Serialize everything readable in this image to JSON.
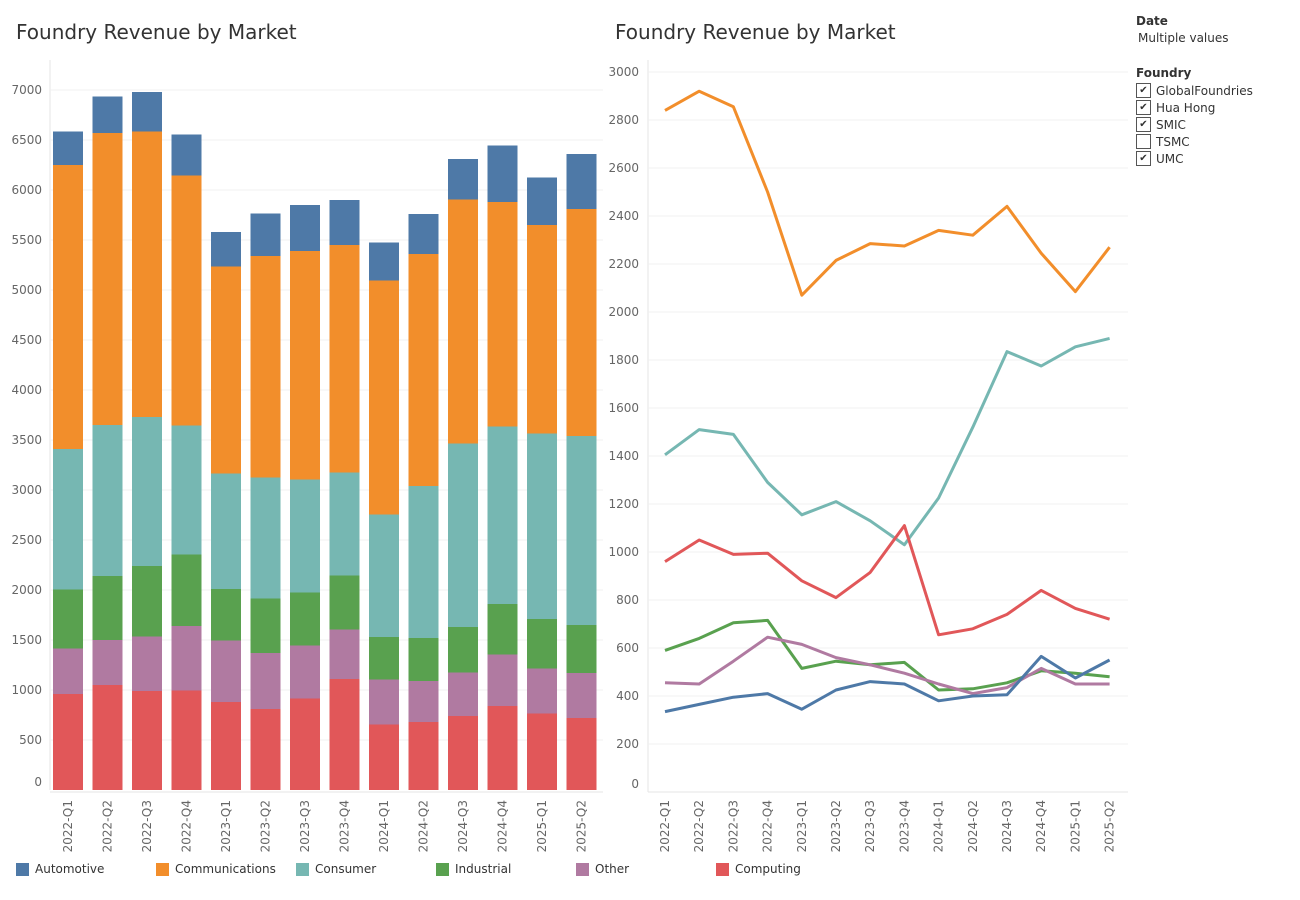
{
  "filters": {
    "date": {
      "label": "Date",
      "value": "Multiple values"
    },
    "foundry": {
      "label": "Foundry",
      "items": [
        {
          "label": "GlobalFoundries",
          "checked": true
        },
        {
          "label": "Hua Hong",
          "checked": true
        },
        {
          "label": "SMIC",
          "checked": true
        },
        {
          "label": "TSMC",
          "checked": false
        },
        {
          "label": "UMC",
          "checked": true
        }
      ]
    },
    "check_glyph": "✔"
  },
  "chart_data": [
    {
      "type": "bar",
      "stacked": true,
      "title": "Foundry Revenue by Market",
      "ylim": [
        0,
        7300
      ],
      "yticks": [
        0,
        500,
        1000,
        1500,
        2000,
        2500,
        3000,
        3500,
        4000,
        4500,
        5000,
        5500,
        6000,
        6500,
        7000
      ],
      "grid": true,
      "legend_placement": "bottom",
      "categories": [
        "2022-Q1",
        "2022-Q2",
        "2022-Q3",
        "2022-Q4",
        "2023-Q1",
        "2023-Q2",
        "2023-Q3",
        "2023-Q4",
        "2024-Q1",
        "2024-Q2",
        "2024-Q3",
        "2024-Q4",
        "2025-Q1",
        "2025-Q2"
      ],
      "series": [
        {
          "name": "Computing",
          "color": "#e15759",
          "values": [
            960,
            1050,
            990,
            995,
            880,
            810,
            915,
            1110,
            655,
            680,
            740,
            840,
            765,
            720
          ]
        },
        {
          "name": "Other",
          "color": "#b07aa1",
          "values": [
            455,
            450,
            545,
            645,
            615,
            560,
            530,
            495,
            450,
            410,
            435,
            515,
            450,
            450
          ]
        },
        {
          "name": "Industrial",
          "color": "#59a14f",
          "values": [
            590,
            640,
            705,
            715,
            515,
            545,
            530,
            540,
            425,
            430,
            455,
            505,
            495,
            480
          ]
        },
        {
          "name": "Consumer",
          "color": "#76b7b2",
          "values": [
            1405,
            1510,
            1490,
            1290,
            1155,
            1210,
            1130,
            1030,
            1225,
            1520,
            1835,
            1775,
            1855,
            1890
          ]
        },
        {
          "name": "Communications",
          "color": "#f28e2b",
          "values": [
            2840,
            2920,
            2855,
            2500,
            2070,
            2215,
            2285,
            2275,
            2340,
            2320,
            2440,
            2245,
            2085,
            2270
          ]
        },
        {
          "name": "Automotive",
          "color": "#4e79a7",
          "values": [
            335,
            365,
            395,
            410,
            345,
            425,
            460,
            450,
            380,
            400,
            405,
            565,
            475,
            550
          ]
        }
      ]
    },
    {
      "type": "line",
      "title": "Foundry Revenue by Market",
      "ylim": [
        0,
        3050
      ],
      "yticks": [
        0,
        200,
        400,
        600,
        800,
        1000,
        1200,
        1400,
        1600,
        1800,
        2000,
        2200,
        2400,
        2600,
        2800,
        3000
      ],
      "grid": true,
      "categories": [
        "2022-Q1",
        "2022-Q2",
        "2022-Q3",
        "2022-Q4",
        "2023-Q1",
        "2023-Q2",
        "2023-Q3",
        "2023-Q4",
        "2024-Q1",
        "2024-Q2",
        "2024-Q3",
        "2024-Q4",
        "2025-Q1",
        "2025-Q2"
      ],
      "series": [
        {
          "name": "Communications",
          "color": "#f28e2b",
          "values": [
            2840,
            2920,
            2855,
            2500,
            2070,
            2215,
            2285,
            2275,
            2340,
            2320,
            2440,
            2245,
            2085,
            2270
          ]
        },
        {
          "name": "Consumer",
          "color": "#76b7b2",
          "values": [
            1405,
            1510,
            1490,
            1290,
            1155,
            1210,
            1130,
            1030,
            1225,
            1520,
            1835,
            1775,
            1855,
            1890
          ]
        },
        {
          "name": "Computing",
          "color": "#e15759",
          "values": [
            960,
            1050,
            990,
            995,
            880,
            810,
            915,
            1110,
            655,
            680,
            740,
            840,
            765,
            720
          ]
        },
        {
          "name": "Industrial",
          "color": "#59a14f",
          "values": [
            590,
            640,
            705,
            715,
            515,
            545,
            530,
            540,
            425,
            430,
            455,
            505,
            495,
            480
          ]
        },
        {
          "name": "Other",
          "color": "#b07aa1",
          "values": [
            455,
            450,
            545,
            645,
            615,
            560,
            530,
            495,
            450,
            410,
            435,
            515,
            450,
            450
          ]
        },
        {
          "name": "Automotive",
          "color": "#4e79a7",
          "values": [
            335,
            365,
            395,
            410,
            345,
            425,
            460,
            450,
            380,
            400,
            405,
            565,
            475,
            550
          ]
        }
      ]
    }
  ],
  "legend": [
    {
      "name": "Automotive",
      "color": "#4e79a7"
    },
    {
      "name": "Communications",
      "color": "#f28e2b"
    },
    {
      "name": "Consumer",
      "color": "#76b7b2"
    },
    {
      "name": "Industrial",
      "color": "#59a14f"
    },
    {
      "name": "Other",
      "color": "#b07aa1"
    },
    {
      "name": "Computing",
      "color": "#e15759"
    }
  ]
}
